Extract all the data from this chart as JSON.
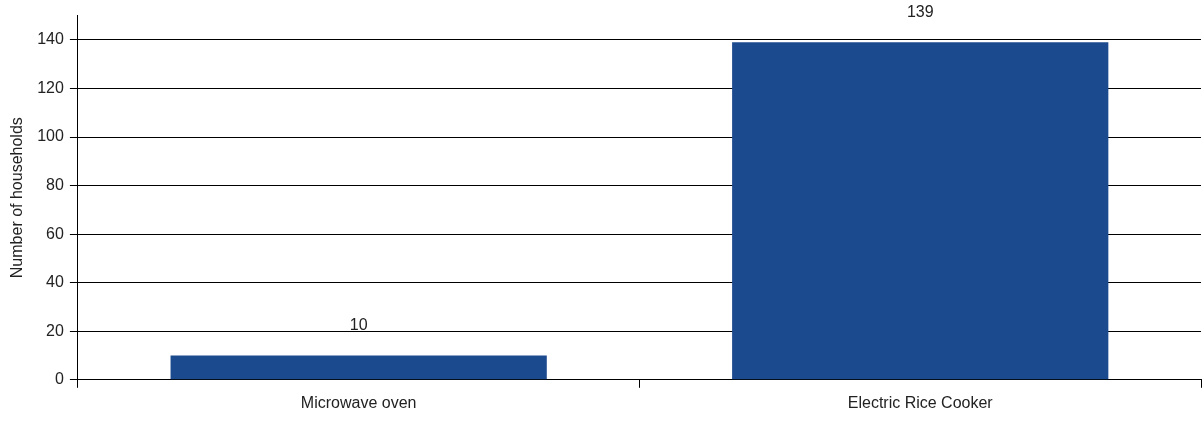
{
  "chart_data": {
    "type": "bar",
    "ylabel": "Number of households",
    "categories": [
      "Microwave oven",
      "Electric Rice Cooker"
    ],
    "values": [
      10,
      139
    ],
    "color": "#1c4a8e",
    "ylim": [
      0,
      150
    ],
    "yticks": [
      0,
      20,
      40,
      60,
      80,
      100,
      120,
      140
    ],
    "grid": "y",
    "data_labels": true,
    "legend": false
  }
}
